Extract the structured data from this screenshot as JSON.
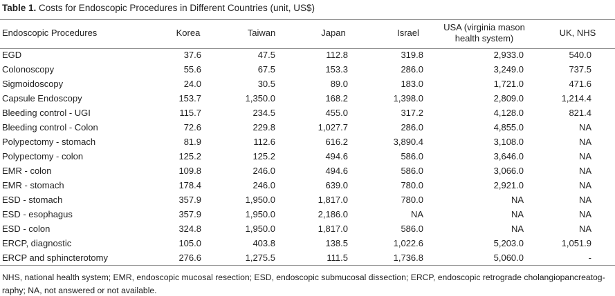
{
  "table": {
    "label": "Table 1.",
    "title": "Costs for Endoscopic Procedures in Different Countries (unit, US$)",
    "header": [
      "Endoscopic Procedures",
      "Korea",
      "Taiwan",
      "Japan",
      "Israel",
      "USA (virginia mason health system)",
      "UK, NHS"
    ],
    "rows": [
      [
        "EGD",
        "37.6",
        "47.5",
        "112.8",
        "319.8",
        "2,933.0",
        "540.0"
      ],
      [
        "Colonoscopy",
        "55.6",
        "67.5",
        "153.3",
        "286.0",
        "3,249.0",
        "737.5"
      ],
      [
        "Sigmoidoscopy",
        "24.0",
        "30.5",
        "89.0",
        "183.0",
        "1,721.0",
        "471.6"
      ],
      [
        "Capsule Endoscopy",
        "153.7",
        "1,350.0",
        "168.2",
        "1,398.0",
        "2,809.0",
        "1,214.4"
      ],
      [
        "Bleeding control - UGI",
        "115.7",
        "234.5",
        "455.0",
        "317.2",
        "4,128.0",
        "821.4"
      ],
      [
        "Bleeding control - Colon",
        "72.6",
        "229.8",
        "1,027.7",
        "286.0",
        "4,855.0",
        "NA"
      ],
      [
        "Polypectomy - stomach",
        "81.9",
        "112.6",
        "616.2",
        "3,890.4",
        "3,108.0",
        "NA"
      ],
      [
        "Polypectomy - colon",
        "125.2",
        "125.2",
        "494.6",
        "586.0",
        "3,646.0",
        "NA"
      ],
      [
        "EMR - colon",
        "109.8",
        "246.0",
        "494.6",
        "586.0",
        "3,066.0",
        "NA"
      ],
      [
        "EMR - stomach",
        "178.4",
        "246.0",
        "639.0",
        "780.0",
        "2,921.0",
        "NA"
      ],
      [
        "ESD - stomach",
        "357.9",
        "1,950.0",
        "1,817.0",
        "780.0",
        "NA",
        "NA"
      ],
      [
        "ESD - esophagus",
        "357.9",
        "1,950.0",
        "2,186.0",
        "NA",
        "NA",
        "NA"
      ],
      [
        "ESD - colon",
        "324.8",
        "1,950.0",
        "1,817.0",
        "586.0",
        "NA",
        "NA"
      ],
      [
        "ERCP, diagnostic",
        "105.0",
        "403.8",
        "138.5",
        "1,022.6",
        "5,203.0",
        "1,051.9"
      ],
      [
        "ERCP and sphincterotomy",
        "276.6",
        "1,275.5",
        "111.5",
        "1,736.8",
        "5,060.0",
        "-"
      ]
    ],
    "footnote": [
      "NHS, national health system; EMR, endoscopic mucosal resection; ESD, endoscopic submucosal dissection; ERCP, endoscopic retrograde cholangiopancreatog-",
      "raphy; NA, not answered or not available."
    ]
  }
}
